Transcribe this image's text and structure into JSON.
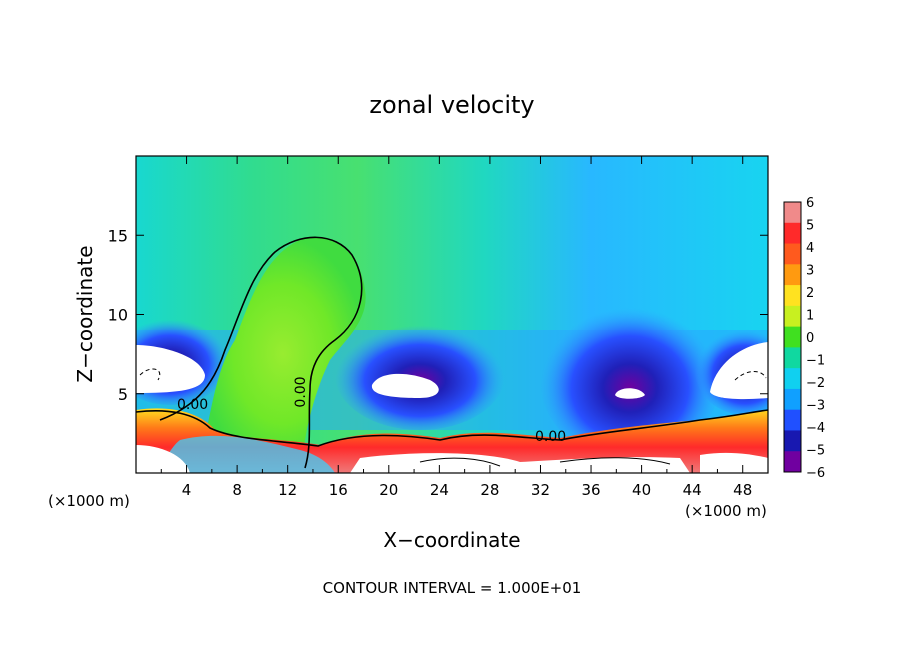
{
  "chart_data": {
    "type": "heatmap",
    "title": "zonal velocity",
    "xlabel": "X−coordinate",
    "ylabel": "Z−coordinate",
    "x_units_left": "(×1000 m)",
    "x_units_right": "(×1000 m)",
    "footer": "CONTOUR INTERVAL = 1.000E+01",
    "xlim": [
      0,
      50
    ],
    "ylim": [
      0,
      20
    ],
    "x_ticks": [
      "4",
      "8",
      "12",
      "16",
      "20",
      "24",
      "28",
      "32",
      "36",
      "40",
      "44",
      "48"
    ],
    "y_ticks": [
      "5",
      "10",
      "15"
    ],
    "colorbar": {
      "range": [
        -6,
        6
      ],
      "ticks": [
        "6",
        "5",
        "4",
        "3",
        "2",
        "1",
        "0",
        "−1",
        "−2",
        "−3",
        "−4",
        "−5",
        "−6"
      ],
      "colors": [
        "#f08a8a",
        "#ff2a2a",
        "#ff5a1e",
        "#ff9a10",
        "#ffe220",
        "#c8f020",
        "#40e020",
        "#10d8a0",
        "#10d0f0",
        "#10a0ff",
        "#2050ff",
        "#1818b0",
        "#7000a0"
      ]
    },
    "contour_labels": [
      "0.00",
      "0.00",
      "0.00"
    ],
    "contour_interval": 10.0
  }
}
